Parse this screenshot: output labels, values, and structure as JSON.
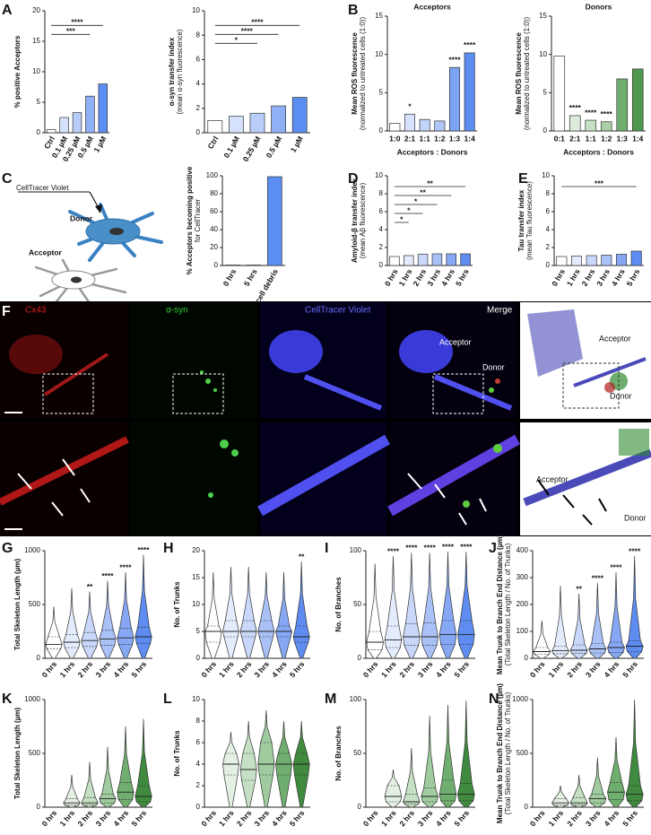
{
  "panel_labels": [
    "A",
    "B",
    "C",
    "D",
    "E",
    "F",
    "G",
    "H",
    "I",
    "J",
    "K",
    "L",
    "M",
    "N"
  ],
  "schematic": {
    "tracer": "CellTracer Violet",
    "donor": "Donor",
    "acceptor": "Acceptor"
  },
  "micrographs": {
    "channels": [
      "Cx43",
      "α-syn",
      "CellTracer Violet",
      "Merge"
    ],
    "merge_labels": [
      "Acceptor",
      "Donor"
    ],
    "render_labels": [
      "Acceptor",
      "Donor"
    ],
    "zoom_labels": [
      "Acceptor",
      "Donor"
    ]
  },
  "chart_data": [
    {
      "type": "bar",
      "ylabel": "% positive Acceptors",
      "categories": [
        "Ctrl",
        "0.1 µM",
        "0.25 µM",
        "0.5 µM",
        "1 µM"
      ],
      "values": [
        0.5,
        2.5,
        3.3,
        6,
        8
      ],
      "colors": [
        "#ffffff",
        "#d6e2fb",
        "#b8cdf8",
        "#8fb0f5",
        "#5b8ef0"
      ],
      "ylim": [
        0,
        20
      ],
      "yticks": [
        0,
        5,
        10,
        15,
        20
      ],
      "brackets": [
        {
          "from": "Ctrl",
          "to": "1 µM",
          "label": "****"
        },
        {
          "from": "Ctrl",
          "to": "0.5 µM",
          "label": "***"
        }
      ]
    },
    {
      "type": "bar",
      "ylabel": "α-syn transfer index",
      "ylabel_sub": "(mean α-syn fluorescence)",
      "categories": [
        "Ctrl",
        "0.1 µM",
        "0.25 µM",
        "0.5 µM",
        "1 µM"
      ],
      "values": [
        1,
        1.35,
        1.6,
        2.2,
        2.9
      ],
      "colors": [
        "#ffffff",
        "#d6e2fb",
        "#b8cdf8",
        "#8fb0f5",
        "#5b8ef0"
      ],
      "ylim": [
        0,
        10
      ],
      "yticks": [
        0,
        2,
        4,
        6,
        8,
        10
      ],
      "brackets": [
        {
          "from": "Ctrl",
          "to": "1 µM",
          "label": "****"
        },
        {
          "from": "Ctrl",
          "to": "0.5 µM",
          "label": "****"
        },
        {
          "from": "Ctrl",
          "to": "0.25 µM",
          "label": "*"
        }
      ]
    },
    {
      "type": "bar",
      "title": "Acceptors",
      "ylabel": "Mean ROS fluorescence",
      "ylabel_sub": "(normalized to untreated cells (1:0))",
      "xlabel": "Acceptors : Donors",
      "categories": [
        "1:0",
        "2:1",
        "1:1",
        "1:2",
        "1:3",
        "1:4"
      ],
      "values": [
        1,
        2.2,
        1.5,
        1.3,
        8.3,
        10.2
      ],
      "colors": [
        "#ffffff",
        "#d6e2fb",
        "#c2d4f9",
        "#b0c7f7",
        "#7ea3f3",
        "#5b8ef0"
      ],
      "ylim": [
        0,
        15
      ],
      "yticks": [
        0,
        5,
        10,
        15
      ],
      "annotations": [
        null,
        "*",
        null,
        null,
        "****",
        "****"
      ]
    },
    {
      "type": "bar",
      "title": "Donors",
      "ylabel": "Mean ROS fluorescence",
      "ylabel_sub": "(normalized to untreated cells (1:0))",
      "xlabel": "Acceptors : Donors",
      "categories": [
        "0:1",
        "2:1",
        "1:1",
        "1:2",
        "1:3",
        "1:4"
      ],
      "values": [
        9.8,
        2,
        1.4,
        1.2,
        6.8,
        8.1
      ],
      "colors": [
        "#ffffff",
        "#dcebdc",
        "#c5e0c5",
        "#a9d0a9",
        "#6fae6f",
        "#4f974f"
      ],
      "ylim": [
        0,
        15
      ],
      "yticks": [
        0,
        5,
        10,
        15
      ],
      "annotations": [
        null,
        "****",
        "****",
        "****",
        null,
        null
      ]
    },
    {
      "type": "bar",
      "ylabel": "% Acceptors becoming positive",
      "ylabel_sub": "for CellTracer",
      "categories": [
        "0 hrs",
        "5 hrs",
        "cell debris"
      ],
      "values": [
        0.5,
        0.5,
        99
      ],
      "colors": [
        "#ffffff",
        "#ffffff",
        "#5b8ef0"
      ],
      "ylim": [
        0,
        100
      ],
      "yticks": [
        0,
        20,
        40,
        60,
        80,
        100
      ]
    },
    {
      "type": "bar",
      "ylabel": "Amyloid-β transfer index",
      "ylabel_sub": "(mean Aβ fluorescence)",
      "categories": [
        "0 hrs",
        "1 hrs",
        "2 hrs",
        "3 hrs",
        "4 hrs",
        "5 hrs"
      ],
      "values": [
        1,
        1.1,
        1.25,
        1.3,
        1.3,
        1.3
      ],
      "colors": [
        "#ffffff",
        "#e3ebfc",
        "#c9d8fa",
        "#a9c1f7",
        "#86a8f4",
        "#5e8cf0"
      ],
      "ylim": [
        0,
        10
      ],
      "yticks": [
        0,
        2,
        4,
        6,
        8,
        10
      ],
      "brackets": [
        {
          "from": "0 hrs",
          "to": "5 hrs",
          "label": "**"
        },
        {
          "from": "0 hrs",
          "to": "4 hrs",
          "label": "**"
        },
        {
          "from": "0 hrs",
          "to": "3 hrs",
          "label": "*"
        },
        {
          "from": "0 hrs",
          "to": "2 hrs",
          "label": "*"
        },
        {
          "from": "0 hrs",
          "to": "1 hrs",
          "label": "*"
        }
      ]
    },
    {
      "type": "bar",
      "ylabel": "Tau transfer index",
      "ylabel_sub": "(mean Tau fluorescence)",
      "categories": [
        "0 hrs",
        "1 hrs",
        "2 hrs",
        "3 hrs",
        "4 hrs",
        "5 hrs"
      ],
      "values": [
        1,
        1.05,
        1.1,
        1.15,
        1.25,
        1.6
      ],
      "colors": [
        "#ffffff",
        "#e3ebfc",
        "#c9d8fa",
        "#a9c1f7",
        "#86a8f4",
        "#5e8cf0"
      ],
      "ylim": [
        0,
        10
      ],
      "yticks": [
        0,
        2,
        4,
        6,
        8,
        10
      ],
      "brackets": [
        {
          "from": "0 hrs",
          "to": "5 hrs",
          "label": "***"
        }
      ]
    },
    {
      "type": "violin",
      "ylabel": "Total Skeleton Length (µm)",
      "categories": [
        "0 hrs",
        "1 hrs",
        "2 hrs",
        "3 hrs",
        "4 hrs",
        "5 hrs"
      ],
      "medians": [
        130,
        150,
        165,
        180,
        190,
        200
      ],
      "q1": [
        90,
        100,
        110,
        120,
        130,
        140
      ],
      "q3": [
        200,
        220,
        240,
        260,
        280,
        290
      ],
      "maxima": [
        480,
        650,
        620,
        720,
        800,
        960
      ],
      "colors": [
        "#ffffff",
        "#e3ebfc",
        "#c9d8fa",
        "#a9c1f7",
        "#86a8f4",
        "#5e8cf0"
      ],
      "ylim": [
        0,
        1000
      ],
      "yticks": [
        0,
        500,
        1000
      ],
      "annotations": [
        null,
        null,
        "**",
        "****",
        "****",
        "****"
      ]
    },
    {
      "type": "violin",
      "ylabel": "No. of Trunks",
      "categories": [
        "0 hrs",
        "1 hrs",
        "2 hrs",
        "3 hrs",
        "4 hrs",
        "5 hrs"
      ],
      "medians": [
        5,
        5,
        5,
        5,
        5,
        4
      ],
      "q1": [
        3,
        4,
        4,
        4,
        4,
        3
      ],
      "q3": [
        6,
        7,
        7,
        7,
        6,
        6
      ],
      "maxima": [
        16,
        17,
        17,
        16,
        16,
        18
      ],
      "colors": [
        "#ffffff",
        "#e3ebfc",
        "#c9d8fa",
        "#a9c1f7",
        "#86a8f4",
        "#5e8cf0"
      ],
      "ylim": [
        0,
        20
      ],
      "yticks": [
        0,
        5,
        10,
        15,
        20
      ],
      "annotations": [
        null,
        null,
        null,
        null,
        null,
        "**"
      ]
    },
    {
      "type": "violin",
      "ylabel": "No. of Branches",
      "categories": [
        "0 hrs",
        "1 hrs",
        "2 hrs",
        "3 hrs",
        "4 hrs",
        "5 hrs"
      ],
      "medians": [
        15,
        17,
        20,
        20,
        22,
        22
      ],
      "q1": [
        8,
        10,
        12,
        12,
        13,
        13
      ],
      "q3": [
        25,
        30,
        32,
        33,
        35,
        35
      ],
      "maxima": [
        88,
        95,
        98,
        98,
        99,
        99
      ],
      "colors": [
        "#ffffff",
        "#e3ebfc",
        "#c9d8fa",
        "#a9c1f7",
        "#86a8f4",
        "#5e8cf0"
      ],
      "ylim": [
        0,
        100
      ],
      "yticks": [
        0,
        50,
        100
      ],
      "annotations": [
        null,
        "****",
        "****",
        "****",
        "****",
        "****"
      ]
    },
    {
      "type": "violin",
      "ylabel": "Mean Trunk to Branch End Distance (µm)",
      "ylabel_sub": "(Total Skeleton Length / No. of Trunks)",
      "categories": [
        "0 hrs",
        "1 hrs",
        "2 hrs",
        "3 hrs",
        "4 hrs",
        "5 hrs"
      ],
      "medians": [
        25,
        28,
        30,
        35,
        40,
        45
      ],
      "q1": [
        15,
        17,
        18,
        20,
        22,
        25
      ],
      "q3": [
        40,
        45,
        50,
        55,
        60,
        65
      ],
      "maxima": [
        140,
        270,
        240,
        280,
        320,
        380
      ],
      "colors": [
        "#ffffff",
        "#e3ebfc",
        "#c9d8fa",
        "#a9c1f7",
        "#86a8f4",
        "#5e8cf0"
      ],
      "ylim": [
        0,
        400
      ],
      "yticks": [
        0,
        100,
        200,
        300,
        400
      ],
      "annotations": [
        null,
        null,
        "**",
        "****",
        "****",
        "****"
      ]
    },
    {
      "type": "violin",
      "ylabel": "Total Skeleton Length (µm)",
      "categories": [
        "0 hrs",
        "1 hrs",
        "2 hrs",
        "3 hrs",
        "4 hrs",
        "5 hrs"
      ],
      "medians": [
        null,
        40,
        40,
        80,
        140,
        100
      ],
      "q1": [
        null,
        20,
        20,
        40,
        70,
        50
      ],
      "q3": [
        null,
        80,
        90,
        120,
        230,
        200
      ],
      "maxima": [
        null,
        300,
        420,
        560,
        750,
        820
      ],
      "colors": [
        "#ffffff",
        "#e3f0e3",
        "#c5e0c5",
        "#9fcb9f",
        "#6fae6f",
        "#3f8a3f"
      ],
      "ylim": [
        0,
        1000
      ],
      "yticks": [
        0,
        500,
        1000
      ]
    },
    {
      "type": "violin",
      "ylabel": "No. of Trunks",
      "categories": [
        "0 hrs",
        "1 hrs",
        "2 hrs",
        "3 hrs",
        "4 hrs",
        "5 hrs"
      ],
      "medians": [
        null,
        4,
        3.5,
        4,
        4,
        4
      ],
      "q1": [
        null,
        3,
        2.5,
        3,
        3,
        3
      ],
      "q3": [
        null,
        5,
        5,
        6,
        5,
        5
      ],
      "maxima": [
        null,
        7,
        8,
        9,
        8,
        8
      ],
      "colors": [
        "#ffffff",
        "#e3f0e3",
        "#c5e0c5",
        "#9fcb9f",
        "#6fae6f",
        "#3f8a3f"
      ],
      "ylim": [
        0,
        10
      ],
      "yticks": [
        0,
        2,
        4,
        6,
        8,
        10
      ]
    },
    {
      "type": "violin",
      "ylabel": "No. of Branches",
      "categories": [
        "0 hrs",
        "1 hrs",
        "2 hrs",
        "3 hrs",
        "4 hrs",
        "5 hrs"
      ],
      "medians": [
        null,
        10,
        5,
        10,
        12,
        12
      ],
      "q1": [
        null,
        5,
        3,
        5,
        6,
        6
      ],
      "q3": [
        null,
        20,
        12,
        18,
        25,
        22
      ],
      "maxima": [
        null,
        35,
        55,
        85,
        95,
        99
      ],
      "colors": [
        "#ffffff",
        "#e3f0e3",
        "#c5e0c5",
        "#9fcb9f",
        "#6fae6f",
        "#3f8a3f"
      ],
      "ylim": [
        0,
        100
      ],
      "yticks": [
        0,
        50,
        100
      ]
    },
    {
      "type": "violin",
      "ylabel": "Mean Trunk to Branch End Distance (µm)",
      "ylabel_sub": "(Total Skeleton Length / No. of Trunks)",
      "categories": [
        "0 hrs",
        "1 hrs",
        "2 hrs",
        "3 hrs",
        "4 hrs",
        "5 hrs"
      ],
      "medians": [
        null,
        40,
        40,
        80,
        140,
        120
      ],
      "q1": [
        null,
        20,
        20,
        40,
        70,
        60
      ],
      "q3": [
        null,
        80,
        90,
        120,
        230,
        200
      ],
      "maxima": [
        null,
        200,
        300,
        460,
        650,
        1000
      ],
      "colors": [
        "#ffffff",
        "#e3f0e3",
        "#c5e0c5",
        "#9fcb9f",
        "#6fae6f",
        "#3f8a3f"
      ],
      "ylim": [
        0,
        1000
      ],
      "yticks": [
        0,
        500,
        1000
      ]
    }
  ]
}
